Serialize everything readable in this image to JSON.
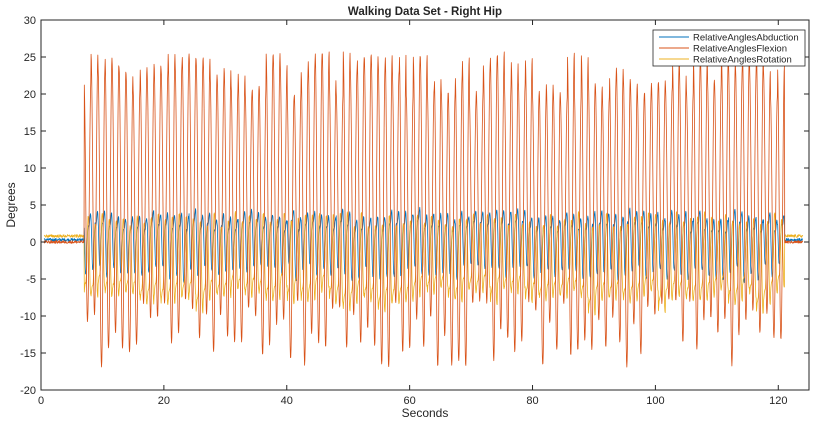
{
  "colors": {
    "background": "#ffffff",
    "axis": "#262626",
    "abduction": "#0072BD",
    "flexion": "#D95319",
    "rotation": "#EDB120"
  },
  "chart_data": {
    "type": "line",
    "title": "Walking Data Set - Right Hip",
    "xlabel": "Seconds",
    "ylabel": "Degrees",
    "xlim": [
      0,
      125
    ],
    "ylim": [
      -20,
      30
    ],
    "xticks": [
      0,
      20,
      40,
      60,
      80,
      100,
      120
    ],
    "yticks": [
      -20,
      -15,
      -10,
      -5,
      0,
      5,
      10,
      15,
      20,
      25,
      30
    ],
    "xtick_labels": [
      "0",
      "20",
      "40",
      "60",
      "80",
      "100",
      "120"
    ],
    "ytick_labels": [
      "-20",
      "-15",
      "-10",
      "-5",
      "0",
      "5",
      "10",
      "15",
      "20",
      "25",
      "30"
    ],
    "grid": false,
    "legend_position": "top-right",
    "walking_interval_seconds": [
      7,
      121
    ],
    "series": [
      {
        "name": "RelativeAnglesAbduction",
        "color": "#0072BD",
        "resting": 0.3,
        "typical_peak": 5,
        "typical_trough": -4,
        "extreme_peak": 6,
        "extreme_trough": -5.5
      },
      {
        "name": "RelativeAnglesFlexion",
        "color": "#D95319",
        "resting": 0,
        "typical_peak": 22.5,
        "typical_trough": -12,
        "extreme_peak": 25.8,
        "extreme_trough": -17
      },
      {
        "name": "RelativeAnglesRotation",
        "color": "#EDB120",
        "resting": 0.8,
        "typical_peak": 3,
        "typical_trough": -9,
        "extreme_peak": 4,
        "extreme_trough": -12
      }
    ]
  }
}
